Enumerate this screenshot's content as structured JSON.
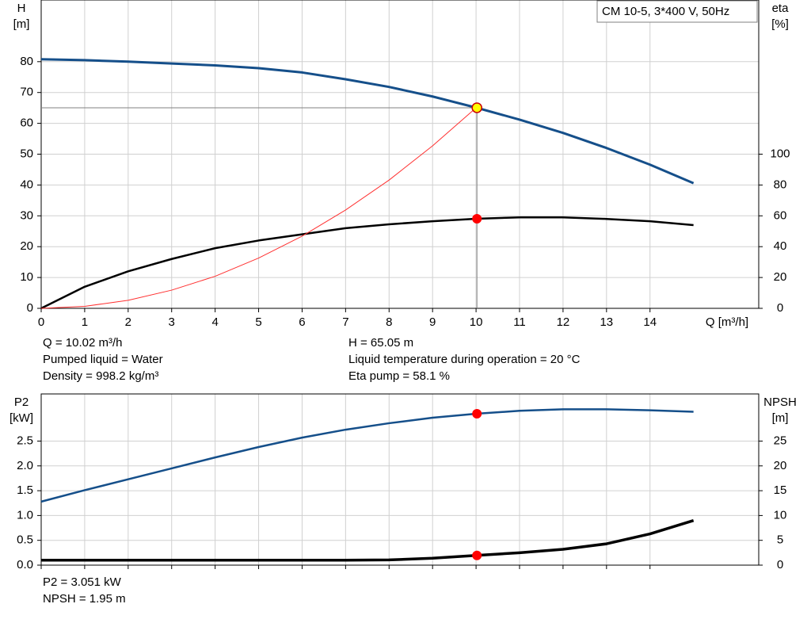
{
  "chart_data": [
    {
      "type": "line",
      "title": "CM 10-5, 3*400 V, 50Hz",
      "xlabel": "Q [m³/h]",
      "ylabel": [
        "H",
        "[m]"
      ],
      "y2label": [
        "eta",
        "[%]"
      ],
      "x": [
        0,
        1,
        2,
        3,
        4,
        5,
        6,
        7,
        8,
        9,
        10,
        11,
        12,
        13,
        14,
        15
      ],
      "xlim": [
        0,
        16.5
      ],
      "xticks": [
        0,
        1,
        2,
        3,
        4,
        5,
        6,
        7,
        8,
        9,
        10,
        11,
        12,
        13,
        14
      ],
      "ylim": [
        0,
        100
      ],
      "yticks": [
        0,
        10,
        20,
        30,
        40,
        50,
        60,
        70,
        80
      ],
      "y2lim": [
        0,
        200
      ],
      "y2ticks": [
        0,
        20,
        40,
        60,
        80,
        100
      ],
      "grid": true,
      "series": [
        {
          "color": "#154f8a",
          "width": 3,
          "values": [
            80.8,
            80.5,
            80.0,
            79.4,
            78.8,
            77.9,
            76.5,
            74.3,
            71.8,
            68.7,
            65.1,
            61.2,
            56.9,
            52.0,
            46.6,
            40.6
          ]
        },
        {
          "color": "#000000",
          "width": 2.5,
          "axis": "y2",
          "values": [
            0,
            14,
            24,
            32,
            39,
            44,
            48,
            52,
            54.5,
            56.5,
            58.1,
            59,
            59,
            58,
            56.5,
            54
          ]
        },
        {
          "color": "#ff3030",
          "width": 1,
          "values": [
            0,
            0.65,
            2.6,
            5.9,
            10.4,
            16.3,
            23.4,
            31.9,
            41.6,
            52.7,
            65.05,
            null,
            null,
            null,
            null,
            null
          ]
        }
      ],
      "markers": [
        {
          "x": 10.02,
          "y": 65.05,
          "color": "#ffff00",
          "crosshair": true
        },
        {
          "x": 10.02,
          "y": 58.1,
          "axis": "y2",
          "color": "#ff0000"
        }
      ],
      "notes": [
        "Q = 10.02 m³/h",
        "Pumped liquid = Water",
        "Density = 998.2 kg/m³",
        "H = 65.05 m",
        "Liquid temperature during operation = 20 °C",
        "Eta pump = 58.1 %"
      ]
    },
    {
      "type": "line",
      "ylabel": [
        "P2",
        "[kW]"
      ],
      "y2label": [
        "NPSH",
        "[m]"
      ],
      "x": [
        0,
        1,
        2,
        3,
        4,
        5,
        6,
        7,
        8,
        9,
        10,
        11,
        12,
        13,
        14,
        15
      ],
      "xlim": [
        0,
        16.5
      ],
      "xticks": [
        0,
        1,
        2,
        3,
        4,
        5,
        6,
        7,
        8,
        9,
        10,
        11,
        12,
        13,
        14
      ],
      "xtick_labels": false,
      "ylim": [
        0,
        3.45
      ],
      "yticks": [
        {
          "value": 0,
          "label": "0.0"
        },
        0.5,
        {
          "value": 1,
          "label": "1.0"
        },
        1.5,
        {
          "value": 2,
          "label": "2.0"
        },
        2.5
      ],
      "y2lim": [
        0,
        34.5
      ],
      "y2ticks": [
        0,
        5,
        10,
        15,
        20,
        25
      ],
      "grid": true,
      "series": [
        {
          "color": "#154f8a",
          "width": 2.5,
          "values": [
            1.28,
            1.51,
            1.73,
            1.95,
            2.17,
            2.38,
            2.57,
            2.73,
            2.86,
            2.97,
            3.05,
            3.11,
            3.14,
            3.14,
            3.12,
            3.09
          ]
        },
        {
          "color": "#000000",
          "width": 3.5,
          "axis": "y2",
          "values": [
            1.0,
            1.0,
            1.0,
            1.0,
            1.0,
            1.0,
            1.0,
            1.0,
            1.05,
            1.4,
            1.95,
            2.5,
            3.2,
            4.3,
            6.3,
            9.0
          ]
        }
      ],
      "markers": [
        {
          "x": 10.02,
          "y": 3.051,
          "color": "#ff0000"
        },
        {
          "x": 10.02,
          "y": 1.95,
          "axis": "y2",
          "color": "#ff0000"
        }
      ],
      "notes": [
        "P2 = 3.051 kW",
        "NPSH = 1.95 m"
      ]
    }
  ]
}
